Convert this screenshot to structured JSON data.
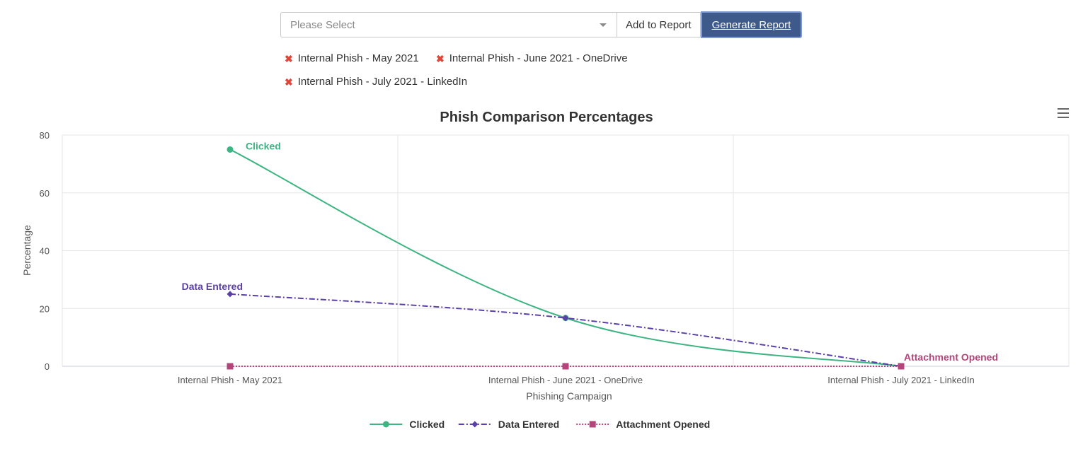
{
  "controls": {
    "select_placeholder": "Please Select",
    "add_label": "Add to Report",
    "generate_label": "Generate Report"
  },
  "selected_campaigns": [
    "Internal Phish - May 2021",
    "Internal Phish - June 2021 - OneDrive",
    "Internal Phish - July 2021 - LinkedIn"
  ],
  "chart_data": {
    "type": "line",
    "title": "Phish Comparison Percentages",
    "xlabel": "Phishing Campaign",
    "ylabel": "Percentage",
    "categories": [
      "Internal Phish - May 2021",
      "Internal Phish - June 2021 - OneDrive",
      "Internal Phish - July 2021 - LinkedIn"
    ],
    "ylim": [
      0,
      80
    ],
    "yticks": [
      0,
      20,
      40,
      60,
      80
    ],
    "grid": true,
    "legend_position": "bottom",
    "series": [
      {
        "name": "Clicked",
        "values": [
          75,
          16.7,
          0
        ],
        "color": "#3cb582",
        "marker": "circle",
        "dash": "solid",
        "label_at": 0
      },
      {
        "name": "Data Entered",
        "values": [
          25,
          16.7,
          0
        ],
        "color": "#5b3fa8",
        "marker": "diamond",
        "dash": "dashdot",
        "label_at": 0
      },
      {
        "name": "Attachment Opened",
        "values": [
          0,
          0,
          0
        ],
        "color": "#b3457a",
        "marker": "square",
        "dash": "dotted",
        "label_at": 2
      }
    ]
  }
}
